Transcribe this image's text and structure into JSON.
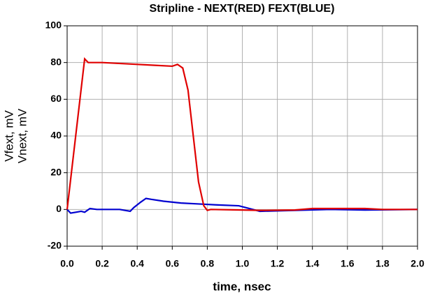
{
  "chart_data": {
    "type": "line",
    "title": "Stripline - NEXT(RED) FEXT(BLUE)",
    "xlabel": "time, nsec",
    "ylabels": [
      "Vfext, mV",
      "Vnext, mV"
    ],
    "xlim": [
      0,
      2
    ],
    "ylim": [
      -20,
      100
    ],
    "xticks": [
      {
        "value": 0,
        "label": "0.0"
      },
      0.2,
      0.4,
      0.6,
      0.8,
      {
        "value": 1,
        "label": "1.0"
      },
      1.2,
      1.4,
      1.6,
      1.8,
      {
        "value": 2,
        "label": "2.0"
      }
    ],
    "yticks": [
      -20,
      0,
      20,
      40,
      60,
      80,
      100
    ],
    "grid": true,
    "series": [
      {
        "name": "Vfext",
        "color": "#0000d0",
        "x": [
          0,
          0.02,
          0.05,
          0.08,
          0.1,
          0.13,
          0.17,
          0.3,
          0.36,
          0.38,
          0.42,
          0.45,
          0.48,
          0.55,
          0.65,
          0.75,
          0.85,
          0.98,
          1.06,
          1.1,
          1.3,
          1.5,
          1.7,
          2.0
        ],
        "values": [
          0,
          -2,
          -1.5,
          -1,
          -1.5,
          0.5,
          0,
          0,
          -1,
          1,
          4,
          6,
          5.5,
          4.5,
          3.5,
          3,
          2.5,
          2,
          0,
          -1,
          -0.5,
          0,
          -0.3,
          0
        ]
      },
      {
        "name": "Vnext",
        "color": "#e00000",
        "x": [
          0,
          0.1,
          0.12,
          0.2,
          0.4,
          0.5,
          0.6,
          0.63,
          0.66,
          0.69,
          0.72,
          0.75,
          0.78,
          0.8,
          0.82,
          1.0,
          1.1,
          1.3,
          1.4,
          1.7,
          1.8,
          2.0
        ],
        "values": [
          0,
          82,
          80,
          80,
          79,
          78.5,
          78,
          79,
          77,
          65,
          40,
          15,
          2,
          -0.5,
          0,
          -0.3,
          -0.5,
          -0.3,
          0.5,
          0.5,
          0,
          0
        ]
      }
    ]
  }
}
